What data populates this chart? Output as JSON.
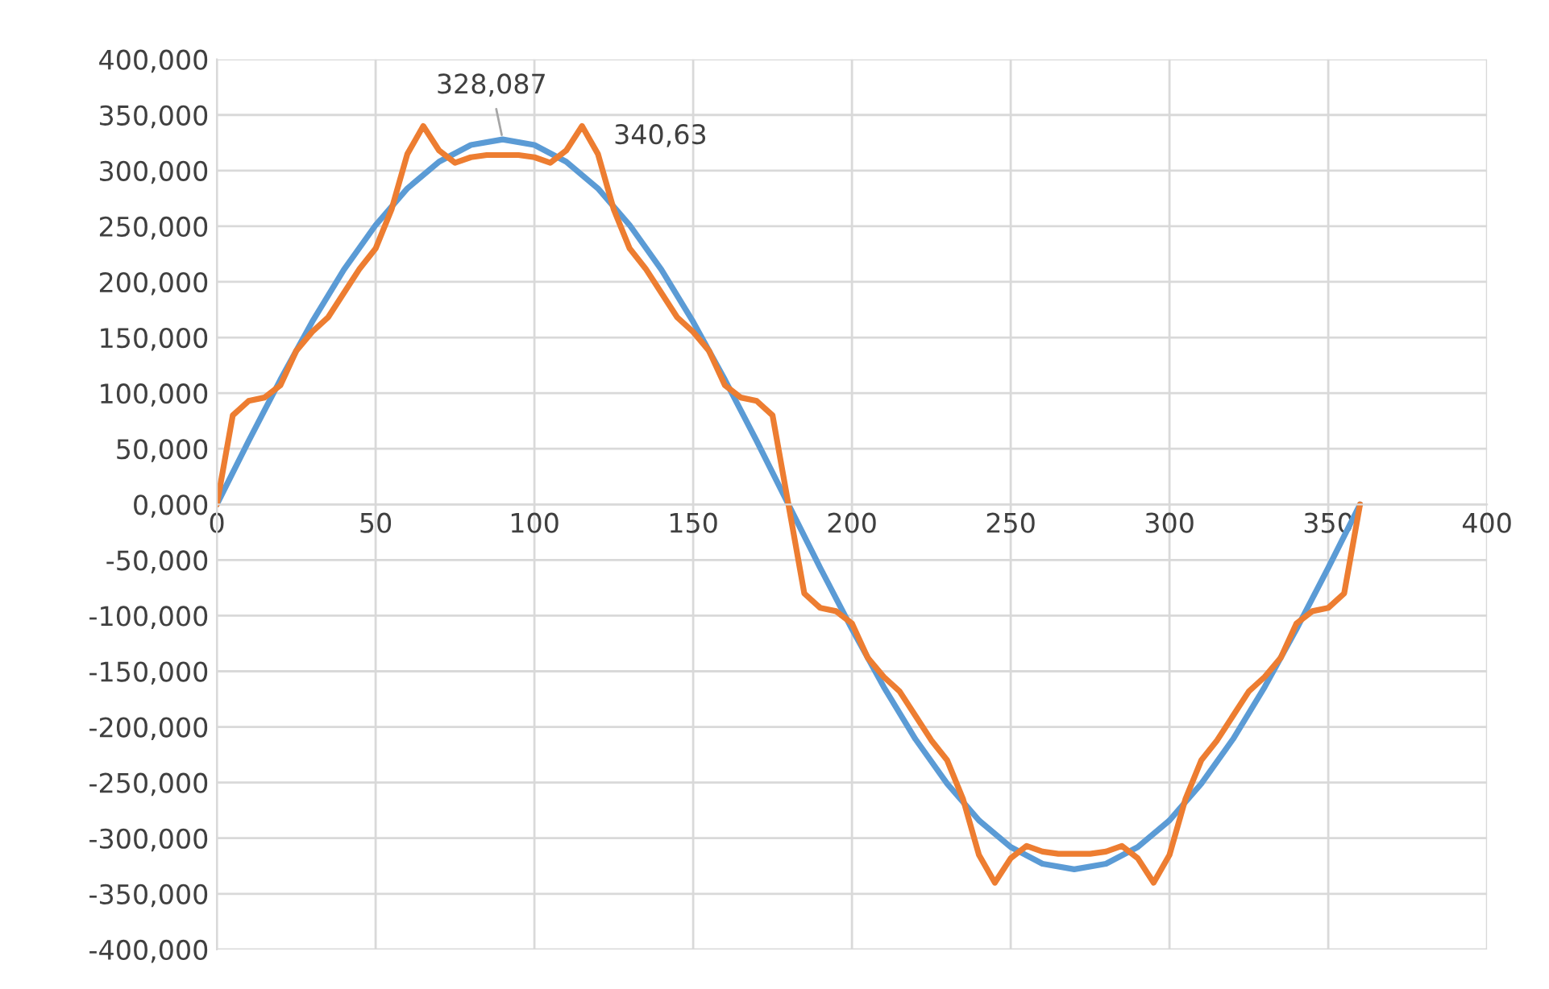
{
  "chart_data": {
    "type": "line",
    "x": [
      0,
      5,
      10,
      15,
      20,
      25,
      30,
      35,
      40,
      45,
      50,
      55,
      60,
      65,
      70,
      75,
      80,
      85,
      90,
      95,
      100,
      105,
      110,
      115,
      120,
      125,
      130,
      135,
      140,
      145,
      150,
      155,
      160,
      165,
      170,
      175,
      180,
      185,
      190,
      195,
      200,
      205,
      210,
      215,
      220,
      225,
      230,
      235,
      240,
      245,
      250,
      255,
      260,
      265,
      270,
      275,
      280,
      285,
      290,
      295,
      300,
      305,
      310,
      315,
      320,
      325,
      330,
      335,
      340,
      345,
      350,
      355,
      360
    ],
    "series": [
      {
        "color": "#5b9bd5",
        "x": [
          0,
          10,
          20,
          30,
          40,
          50,
          60,
          70,
          80,
          90,
          100,
          110,
          120,
          130,
          140,
          150,
          160,
          170,
          180,
          190,
          200,
          210,
          220,
          230,
          240,
          250,
          260,
          270,
          280,
          290,
          300,
          310,
          320,
          330,
          340,
          350,
          360
        ],
        "values": [
          0,
          57,
          112,
          164,
          211,
          251,
          284,
          308,
          323,
          328,
          323,
          308,
          284,
          251,
          211,
          164,
          112,
          57,
          0,
          -57,
          -112,
          -164,
          -211,
          -251,
          -284,
          -308,
          -323,
          -328,
          -323,
          -308,
          -284,
          -251,
          -211,
          -164,
          -112,
          -57,
          0
        ]
      },
      {
        "color": "#ed7d31",
        "values": [
          0,
          80,
          93,
          96,
          107,
          138,
          155,
          168,
          190,
          212,
          230,
          265,
          315,
          340,
          318,
          307,
          312,
          314,
          314,
          314,
          312,
          307,
          318,
          340,
          315,
          265,
          230,
          212,
          190,
          168,
          155,
          138,
          107,
          96,
          93,
          80,
          0,
          -80,
          -93,
          -96,
          -107,
          -138,
          -155,
          -168,
          -190,
          -212,
          -230,
          -265,
          -315,
          -340,
          -318,
          -307,
          -312,
          -314,
          -314,
          -314,
          -312,
          -307,
          -318,
          -340,
          -315,
          -265,
          -230,
          -212,
          -190,
          -168,
          -155,
          -138,
          -107,
          -96,
          -93,
          -80,
          0
        ]
      }
    ],
    "xlim": [
      0,
      400
    ],
    "xticks": [
      0,
      50,
      100,
      150,
      200,
      250,
      300,
      350,
      400
    ],
    "ylim": [
      -400,
      400
    ],
    "yticks": [
      {
        "value": -400,
        "label": "-400,000"
      },
      {
        "value": -350,
        "label": "-350,000"
      },
      {
        "value": -300,
        "label": "-300,000"
      },
      {
        "value": -250,
        "label": "-250,000"
      },
      {
        "value": -200,
        "label": "-200,000"
      },
      {
        "value": -150,
        "label": "-150,000"
      },
      {
        "value": -100,
        "label": "-100,000"
      },
      {
        "value": -50,
        "label": "-50,000"
      },
      {
        "value": 0,
        "label": "0,000"
      },
      {
        "value": 50,
        "label": "50,000"
      },
      {
        "value": 100,
        "label": "100,000"
      },
      {
        "value": 150,
        "label": "150,000"
      },
      {
        "value": 200,
        "label": "200,000"
      },
      {
        "value": 250,
        "label": "250,000"
      },
      {
        "value": 300,
        "label": "300,000"
      },
      {
        "value": 350,
        "label": "350,000"
      },
      {
        "value": 400,
        "label": "400,000"
      }
    ],
    "annotations": [
      {
        "text": "328,087",
        "x": 90,
        "y": 328.087
      },
      {
        "text": "340,63",
        "x": 115,
        "y": 340.63
      }
    ],
    "grid": true,
    "legend": false,
    "marker": "none",
    "line_style": "solid"
  }
}
